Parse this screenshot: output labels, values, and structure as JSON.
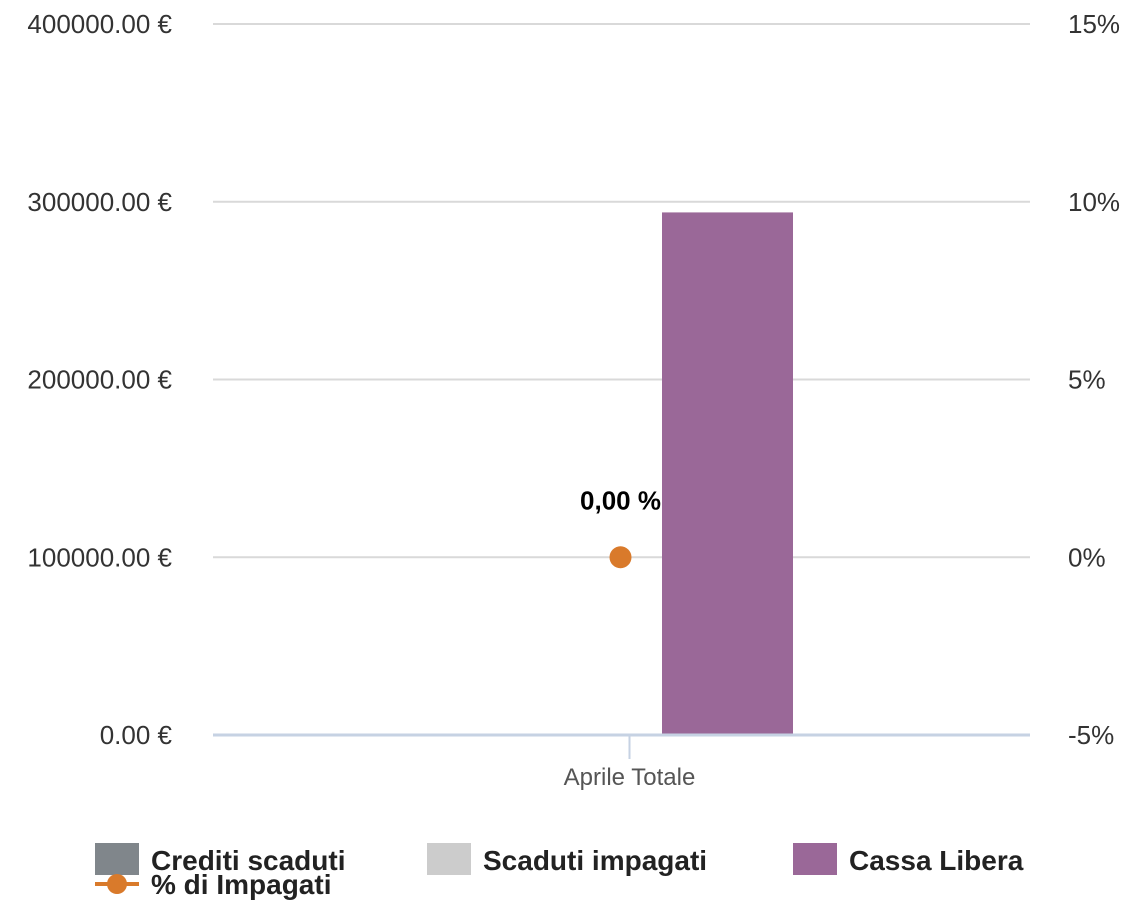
{
  "chart_data": {
    "type": "bar",
    "categories": [
      "Aprile Totale"
    ],
    "series": [
      {
        "name": "Crediti scaduti",
        "type": "bar",
        "axis": "left",
        "values": [
          0
        ],
        "color": "#80868b"
      },
      {
        "name": "Scaduti impagati",
        "type": "bar",
        "axis": "left",
        "values": [
          0
        ],
        "color": "#cccccc"
      },
      {
        "name": "Cassa Libera",
        "type": "bar",
        "axis": "left",
        "values": [
          294000
        ],
        "color": "#9a6898"
      },
      {
        "name": "% di Impagati",
        "type": "line",
        "axis": "right",
        "values": [
          0
        ],
        "color": "#d97a2b",
        "data_labels": [
          "0,00 %"
        ]
      }
    ],
    "y_left": {
      "ticks": [
        "0.00 €",
        "100000.00 €",
        "200000.00 €",
        "300000.00 €",
        "400000.00 €"
      ],
      "min": 0,
      "max": 400000
    },
    "y_right": {
      "ticks": [
        "-5%",
        "0%",
        "5%",
        "10%",
        "15%"
      ],
      "min": -5,
      "max": 15
    },
    "grid": true,
    "legend_position": "bottom-left",
    "xlabel": "",
    "ylabel": ""
  }
}
